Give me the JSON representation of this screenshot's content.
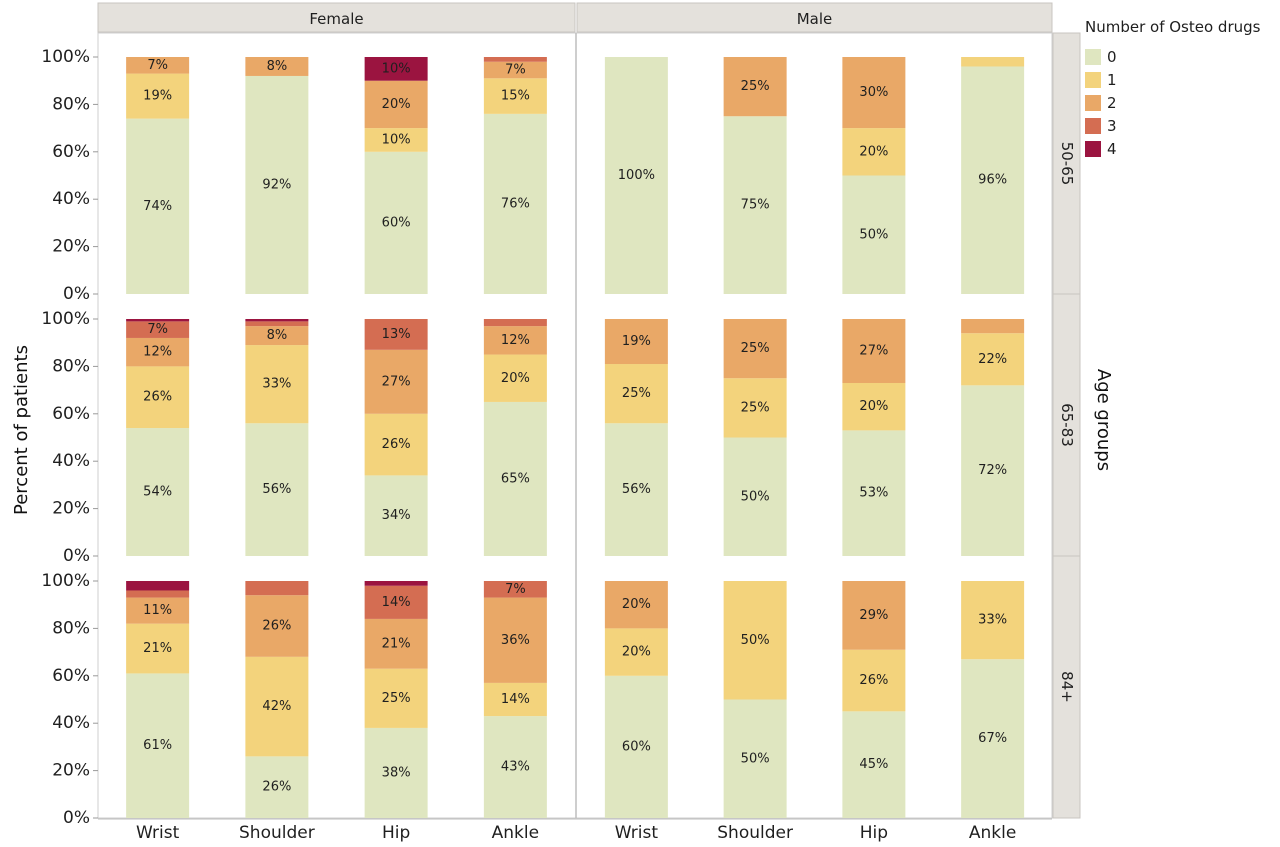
{
  "chart_data": {
    "type": "bar",
    "stacked": true,
    "percent_stacked": true,
    "ylabel": "Percent of patients",
    "right_strip_title": "Age groups",
    "ylim": [
      0,
      100
    ],
    "y_ticks": [
      "0%",
      "20%",
      "40%",
      "60%",
      "80%",
      "100%"
    ],
    "categories": [
      "Wrist",
      "Shoulder",
      "Hip",
      "Ankle"
    ],
    "columns": [
      "Female",
      "Male"
    ],
    "rows": [
      "50-65",
      "65-83",
      "84+"
    ],
    "legend": {
      "title": "Number of Osteo drugs",
      "placement": "right",
      "entries": [
        "0",
        "1",
        "2",
        "3",
        "4"
      ],
      "colors": [
        "#dfe6c0",
        "#f3d37c",
        "#e9a867",
        "#d46d52",
        "#9b1440"
      ]
    },
    "panels": [
      {
        "column": "Female",
        "row": "50-65",
        "bars": [
          {
            "category": "Wrist",
            "values": [
              74,
              19,
              7,
              0,
              0
            ],
            "labels": [
              "74%",
              "19%",
              "7%",
              "",
              ""
            ]
          },
          {
            "category": "Shoulder",
            "values": [
              92,
              0,
              8,
              0,
              0
            ],
            "labels": [
              "92%",
              "",
              "8%",
              "",
              ""
            ]
          },
          {
            "category": "Hip",
            "values": [
              60,
              10,
              20,
              0,
              10
            ],
            "labels": [
              "60%",
              "10%",
              "20%",
              "",
              "10%"
            ]
          },
          {
            "category": "Ankle",
            "values": [
              76,
              15,
              7,
              2,
              0
            ],
            "labels": [
              "76%",
              "15%",
              "7%",
              "",
              ""
            ]
          }
        ]
      },
      {
        "column": "Male",
        "row": "50-65",
        "bars": [
          {
            "category": "Wrist",
            "values": [
              100,
              0,
              0,
              0,
              0
            ],
            "labels": [
              "100%",
              "",
              "",
              "",
              ""
            ]
          },
          {
            "category": "Shoulder",
            "values": [
              75,
              0,
              25,
              0,
              0
            ],
            "labels": [
              "75%",
              "",
              "25%",
              "",
              ""
            ]
          },
          {
            "category": "Hip",
            "values": [
              50,
              20,
              30,
              0,
              0
            ],
            "labels": [
              "50%",
              "20%",
              "30%",
              "",
              ""
            ]
          },
          {
            "category": "Ankle",
            "values": [
              96,
              4,
              0,
              0,
              0
            ],
            "labels": [
              "96%",
              "",
              "",
              "",
              ""
            ]
          }
        ]
      },
      {
        "column": "Female",
        "row": "65-83",
        "bars": [
          {
            "category": "Wrist",
            "values": [
              54,
              26,
              12,
              7,
              1
            ],
            "labels": [
              "54%",
              "26%",
              "12%",
              "7%",
              ""
            ]
          },
          {
            "category": "Shoulder",
            "values": [
              56,
              33,
              8,
              2,
              1
            ],
            "labels": [
              "56%",
              "33%",
              "8%",
              "",
              ""
            ]
          },
          {
            "category": "Hip",
            "values": [
              34,
              26,
              27,
              13,
              0
            ],
            "labels": [
              "34%",
              "26%",
              "27%",
              "13%",
              ""
            ]
          },
          {
            "category": "Ankle",
            "values": [
              65,
              20,
              12,
              3,
              0
            ],
            "labels": [
              "65%",
              "20%",
              "12%",
              "",
              ""
            ]
          }
        ]
      },
      {
        "column": "Male",
        "row": "65-83",
        "bars": [
          {
            "category": "Wrist",
            "values": [
              56,
              25,
              19,
              0,
              0
            ],
            "labels": [
              "56%",
              "25%",
              "19%",
              "",
              ""
            ]
          },
          {
            "category": "Shoulder",
            "values": [
              50,
              25,
              25,
              0,
              0
            ],
            "labels": [
              "50%",
              "25%",
              "25%",
              "",
              ""
            ]
          },
          {
            "category": "Hip",
            "values": [
              53,
              20,
              27,
              0,
              0
            ],
            "labels": [
              "53%",
              "20%",
              "27%",
              "",
              ""
            ]
          },
          {
            "category": "Ankle",
            "values": [
              72,
              22,
              6,
              0,
              0
            ],
            "labels": [
              "72%",
              "22%",
              "",
              "",
              ""
            ]
          }
        ]
      },
      {
        "column": "Female",
        "row": "84+",
        "bars": [
          {
            "category": "Wrist",
            "values": [
              61,
              21,
              11,
              3,
              4
            ],
            "labels": [
              "61%",
              "21%",
              "11%",
              "",
              ""
            ]
          },
          {
            "category": "Shoulder",
            "values": [
              26,
              42,
              26,
              6,
              0
            ],
            "labels": [
              "26%",
              "42%",
              "26%",
              "",
              ""
            ]
          },
          {
            "category": "Hip",
            "values": [
              38,
              25,
              21,
              14,
              2
            ],
            "labels": [
              "38%",
              "25%",
              "21%",
              "14%",
              ""
            ]
          },
          {
            "category": "Ankle",
            "values": [
              43,
              14,
              36,
              7,
              0
            ],
            "labels": [
              "43%",
              "14%",
              "36%",
              "7%",
              ""
            ]
          }
        ]
      },
      {
        "column": "Male",
        "row": "84+",
        "bars": [
          {
            "category": "Wrist",
            "values": [
              60,
              20,
              20,
              0,
              0
            ],
            "labels": [
              "60%",
              "20%",
              "20%",
              "",
              ""
            ]
          },
          {
            "category": "Shoulder",
            "values": [
              50,
              50,
              0,
              0,
              0
            ],
            "labels": [
              "50%",
              "50%",
              "",
              "",
              ""
            ]
          },
          {
            "category": "Hip",
            "values": [
              45,
              26,
              29,
              0,
              0
            ],
            "labels": [
              "45%",
              "26%",
              "29%",
              "",
              ""
            ]
          },
          {
            "category": "Ankle",
            "values": [
              67,
              33,
              0,
              0,
              0
            ],
            "labels": [
              "67%",
              "33%",
              "",
              "",
              ""
            ]
          }
        ]
      }
    ]
  }
}
